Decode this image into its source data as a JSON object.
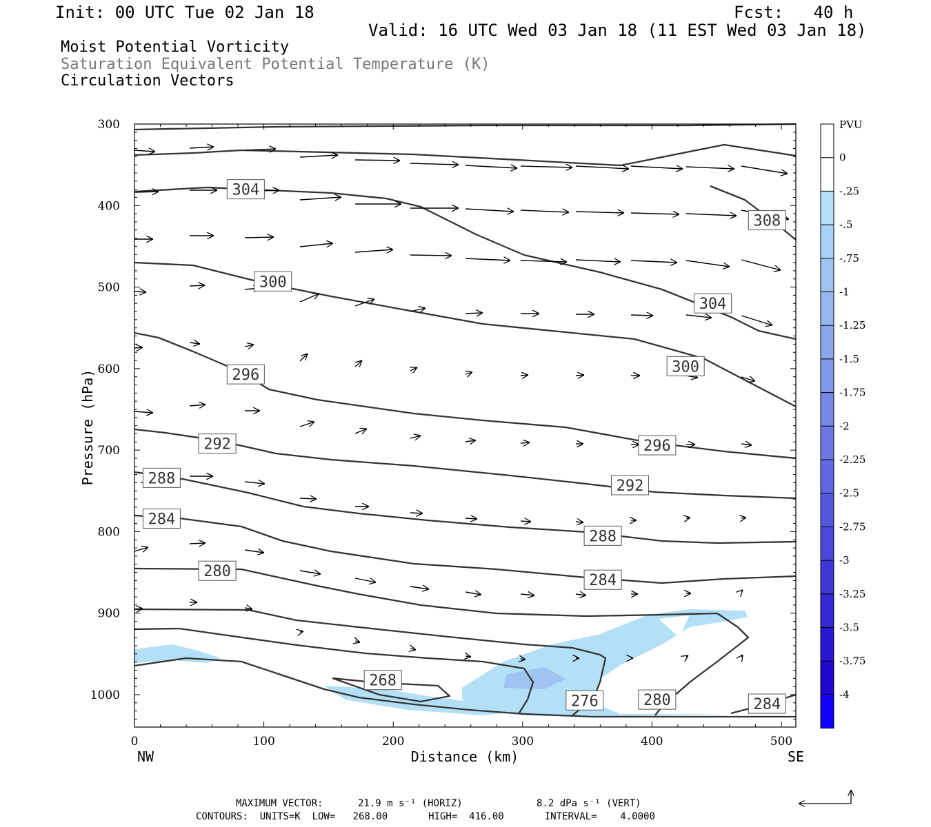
{
  "header": {
    "init": "Init: 00 UTC Tue 02 Jan 18",
    "fcst": "Fcst:   40 h",
    "valid": "Valid: 16 UTC Wed 03 Jan 18 (11 EST Wed 03 Jan 18)",
    "line1": "Moist Potential Vorticity",
    "line2": "Saturation Equivalent Potential Temperature (K)",
    "line3": "Circulation Vectors"
  },
  "footer": {
    "max_vector_label": "MAXIMUM VECTOR:",
    "max_vector_horiz": "21.9 m s⁻¹ (HORIZ)",
    "max_vector_vert": "8.2 dPa s⁻¹ (VERT)",
    "contours": "CONTOURS:  UNITS=K  LOW=   268.00       HIGH=  416.00       INTERVAL=    4.0000"
  },
  "colors": {
    "contour": "#333333",
    "pv_light": "#b3e0f7",
    "pv_medium": "#9fc4f2",
    "pv_scale": [
      "#ffffff",
      "#ffffff",
      "#b3e0f7",
      "#a9d2f6",
      "#9fc4f2",
      "#96b6ef",
      "#8ca6ec",
      "#8197e9",
      "#7687e6",
      "#6b77e3",
      "#6067e0",
      "#5557dd",
      "#4a47da",
      "#3f37d7",
      "#3427d4",
      "#2917d1",
      "#1e07ce",
      "#1200ff"
    ]
  },
  "chart_data": {
    "type": "contour",
    "xlabel": "Distance (km)",
    "ylabel": "Pressure (hPa)",
    "x_ticks": [
      0,
      100,
      200,
      300,
      400,
      500
    ],
    "y_ticks": [
      300,
      400,
      500,
      600,
      700,
      800,
      900,
      1000
    ],
    "xlim": [
      0,
      512
    ],
    "ylim": [
      300,
      1040
    ],
    "y_reversed": true,
    "x_endpoint_labels": [
      "NW",
      "SE"
    ],
    "colorbar": {
      "title": "PVU",
      "labels": [
        "0",
        "-.25",
        "-.5",
        "-.75",
        "-1",
        "-1.25",
        "-1.5",
        "-1.75",
        "-2",
        "-2.25",
        "-2.5",
        "-2.75",
        "-3",
        "-3.25",
        "-3.5",
        "-3.75",
        "-4"
      ]
    },
    "contour_labels": [
      {
        "value": "304",
        "x": 86,
        "p": 380
      },
      {
        "value": "308",
        "x": 489,
        "p": 418
      },
      {
        "value": "300",
        "x": 107,
        "p": 493
      },
      {
        "value": "304",
        "x": 447,
        "p": 520
      },
      {
        "value": "296",
        "x": 86,
        "p": 607
      },
      {
        "value": "300",
        "x": 426,
        "p": 597
      },
      {
        "value": "292",
        "x": 64,
        "p": 692
      },
      {
        "value": "296",
        "x": 404,
        "p": 694
      },
      {
        "value": "288",
        "x": 21,
        "p": 734
      },
      {
        "value": "292",
        "x": 383,
        "p": 743
      },
      {
        "value": "284",
        "x": 21,
        "p": 784
      },
      {
        "value": "288",
        "x": 362,
        "p": 805
      },
      {
        "value": "280",
        "x": 64,
        "p": 848
      },
      {
        "value": "284",
        "x": 362,
        "p": 859
      },
      {
        "value": "268",
        "x": 192,
        "p": 982
      },
      {
        "value": "276",
        "x": 348,
        "p": 1007
      },
      {
        "value": "280",
        "x": 404,
        "p": 1006
      },
      {
        "value": "284",
        "x": 489,
        "p": 1011
      }
    ]
  }
}
